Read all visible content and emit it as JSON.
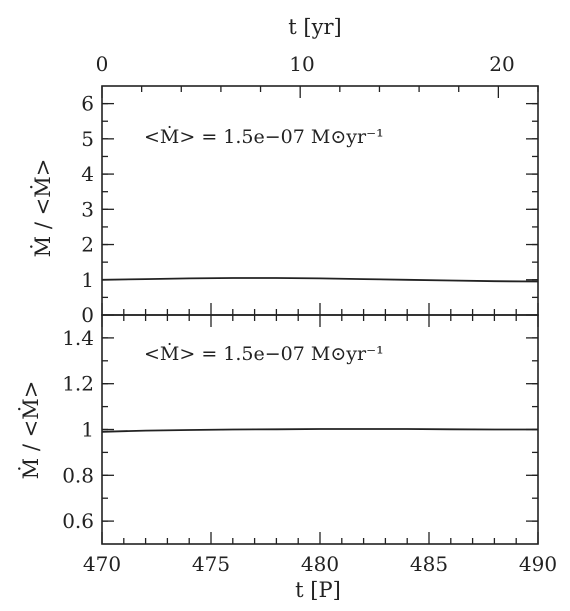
{
  "chart_data": [
    {
      "type": "line",
      "panel": "top",
      "xlabel": "t [P]",
      "top_axis_label": "t [yr]",
      "ylabel": "Ṁ / <Ṁ>",
      "xlim": [
        470,
        490
      ],
      "ylim": [
        0,
        6.5
      ],
      "top_axis_range_yr": [
        0,
        22
      ],
      "yticks": [
        0,
        1,
        2,
        3,
        4,
        5,
        6
      ],
      "top_ticks_yr": [
        0,
        10,
        20
      ],
      "annotation": "<Ṁ> = 1.5e−07 M⊙yr⁻¹",
      "series": [
        {
          "x": [
            470,
            472,
            474,
            476,
            478,
            480,
            482,
            484,
            486,
            488,
            490
          ],
          "values": [
            1.0,
            1.02,
            1.04,
            1.05,
            1.05,
            1.04,
            1.02,
            1.0,
            0.98,
            0.96,
            0.95
          ]
        }
      ]
    },
    {
      "type": "line",
      "panel": "bottom",
      "xlabel": "t [P]",
      "ylabel": "Ṁ / <Ṁ>",
      "xlim": [
        470,
        490
      ],
      "ylim": [
        0.5,
        1.5
      ],
      "xticks": [
        470,
        475,
        480,
        485,
        490
      ],
      "yticks": [
        0.6,
        0.8,
        1,
        1.2,
        1.4
      ],
      "annotation": "<Ṁ> = 1.5e−07 M⊙yr⁻¹",
      "series": [
        {
          "x": [
            470,
            472,
            474,
            476,
            478,
            480,
            482,
            484,
            486,
            488,
            490
          ],
          "values": [
            0.99,
            0.995,
            0.998,
            1.0,
            1.001,
            1.002,
            1.002,
            1.002,
            1.001,
            1.0,
            1.0
          ]
        }
      ]
    }
  ],
  "labels": {
    "top_axis_title": "t [yr]",
    "bottom_axis_title": "t [P]",
    "y_axis_title": "Ṁ / <Ṁ>",
    "annotation_top": "<Ṁ> = 1.5e−07 M⊙yr⁻¹",
    "annotation_bottom": "<Ṁ> = 1.5e−07 M⊙yr⁻¹",
    "top_ticks": [
      "0",
      "10",
      "20"
    ],
    "bottom_ticks": [
      "470",
      "475",
      "480",
      "485",
      "490"
    ],
    "top_panel_yticks": [
      "0",
      "1",
      "2",
      "3",
      "4",
      "5",
      "6"
    ],
    "bottom_panel_yticks": [
      "0.6",
      "0.8",
      "1",
      "1.2",
      "1.4"
    ]
  }
}
